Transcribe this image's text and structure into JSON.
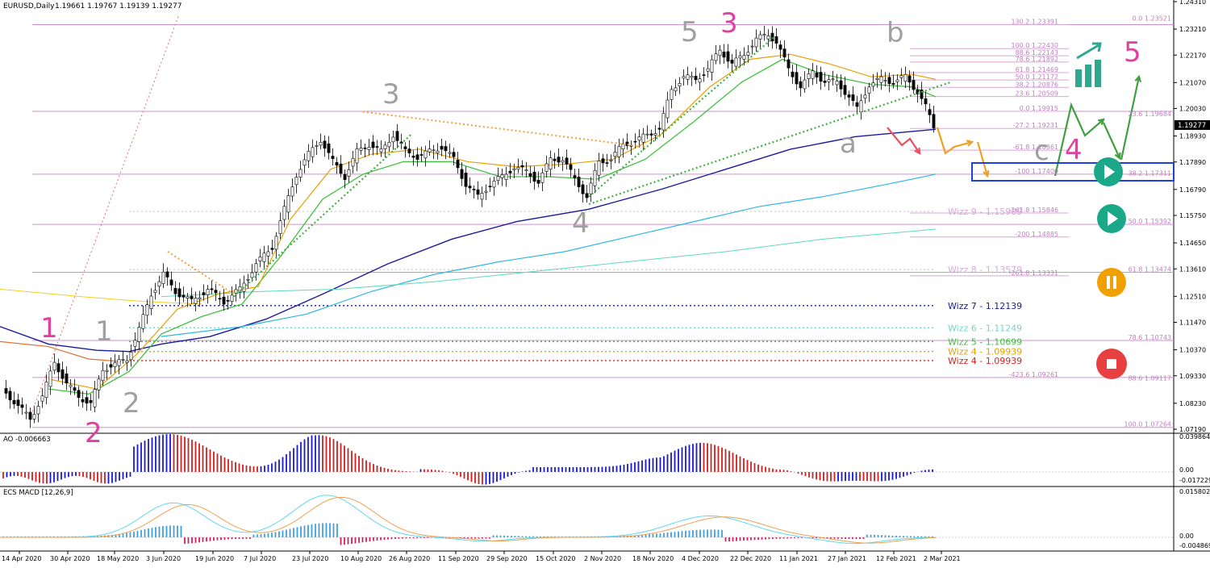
{
  "header": {
    "symbol": "EURUSD,Daily",
    "ohlc": "1.19661 1.19767 1.19139 1.19277"
  },
  "price_axis": {
    "ticks": [
      "1.24310",
      "1.23210",
      "1.22170",
      "1.21070",
      "1.20030",
      "1.18930",
      "1.17890",
      "1.16790",
      "1.15750",
      "1.14650",
      "1.13610",
      "1.12510",
      "1.11470",
      "1.10370",
      "1.09330",
      "1.08230",
      "1.07190"
    ],
    "current_price": "1.19277"
  },
  "time_axis": {
    "ticks": [
      "14 Apr 2020",
      "30 Apr 2020",
      "18 May 2020",
      "3 Jun 2020",
      "19 Jun 2020",
      "7 Jul 2020",
      "23 Jul 2020",
      "10 Aug 2020",
      "26 Aug 2020",
      "11 Sep 2020",
      "29 Sep 2020",
      "15 Oct 2020",
      "2 Nov 2020",
      "18 Nov 2020",
      "4 Dec 2020",
      "22 Dec 2020",
      "11 Jan 2021",
      "27 Jan 2021",
      "12 Feb 2021",
      "2 Mar 2021"
    ]
  },
  "fib_labels": {
    "top": [
      "130.2 1.23391",
      "100.0 1.22430",
      "88.6 1.22143",
      "78.6 1.21892",
      "61.8 1.21469",
      "50.0 1.21172",
      "38.2 1.20876",
      "23.6 1.20509",
      "0.0 1.19915",
      "-27.2 1.19231",
      "-61.8 1.18361",
      "-100 1.17400",
      "-161.8 1.15846",
      "-200 1.14885",
      "-261.8 1.13331",
      "-423.6 1.09261"
    ],
    "right": [
      "0.0 1.23521",
      "23.6 1.19684",
      "38.2 1.17311",
      "50.0 1.15392",
      "61.8 1.13474",
      "78.6 1.10743",
      "88.6 1.09117",
      "100.0 1.07264"
    ]
  },
  "wizz_levels": [
    {
      "label": "Wizz 9 - 1.15909",
      "color": "#d8a8d8"
    },
    {
      "label": "Wizz 8 - 1.13579",
      "color": "#d8a8d8"
    },
    {
      "label": "Wizz 7 - 1.12139",
      "color": "#1a1aa0"
    },
    {
      "label": "Wizz 6 - 1.11249",
      "color": "#70d8c8"
    },
    {
      "label": "Wizz 5 - 1.10699",
      "color": "#40c040"
    },
    {
      "label": "Wizz 4 - 1.09939",
      "color": "#e8a000"
    },
    {
      "label": "Wizz 4 - 1.09939",
      "color": "#e02020"
    }
  ],
  "wave_labels": [
    {
      "text": "1",
      "color": "#e040a0"
    },
    {
      "text": "2",
      "color": "#e040a0"
    },
    {
      "text": "1",
      "color": "#a0a0a0"
    },
    {
      "text": "2",
      "color": "#a0a0a0"
    },
    {
      "text": "3",
      "color": "#a0a0a0"
    },
    {
      "text": "4",
      "color": "#a0a0a0"
    },
    {
      "text": "5",
      "color": "#a0a0a0"
    },
    {
      "text": "3",
      "color": "#e040a0"
    },
    {
      "text": "a",
      "color": "#a0a0a0"
    },
    {
      "text": "b",
      "color": "#a0a0a0"
    },
    {
      "text": "c",
      "color": "#a0a0a0"
    },
    {
      "text": "4",
      "color": "#e040a0"
    },
    {
      "text": "5",
      "color": "#e040a0"
    }
  ],
  "ao_panel": {
    "title": "AO -0.006663",
    "ticks": [
      "0.039864",
      "0.00",
      "-0.017229"
    ]
  },
  "macd_panel": {
    "title": "ECS MACD [12,26,9]",
    "ticks": [
      "0.0158024",
      "0.00",
      "-0.004869"
    ]
  },
  "chart_data": {
    "type": "candlestick",
    "title": "EURUSD,Daily",
    "x_range": [
      "14 Apr 2020",
      "2 Mar 2021"
    ],
    "ylim": [
      1.0719,
      1.2431
    ],
    "series": [
      {
        "name": "EURUSD",
        "ohlc_last": [
          1.19661,
          1.19767,
          1.19139,
          1.19277
        ]
      }
    ],
    "fib_levels_top": [
      1.23391,
      1.2243,
      1.22143,
      1.21892,
      1.21469,
      1.21172,
      1.20876,
      1.20509,
      1.19915,
      1.19231,
      1.18361,
      1.174,
      1.15846,
      1.14885,
      1.13331,
      1.09261
    ],
    "fib_levels_right": [
      1.23521,
      1.19684,
      1.17311,
      1.15392,
      1.13474,
      1.10743,
      1.09117,
      1.07264
    ],
    "wizz_levels": [
      1.15909,
      1.13579,
      1.12139,
      1.11249,
      1.10699,
      1.09939
    ]
  },
  "colors": {
    "ma_dark_blue": "#1a1aa0",
    "ma_cyan": "#30b8e0",
    "ma_green": "#40c040",
    "ma_orange": "#e8a000",
    "ma_magenta": "#c020c0",
    "bull_bar": "#1a1ad0",
    "bear_bar": "#d02020",
    "play_button": "#1aa888",
    "pause_button": "#f0a000",
    "stop_button": "#e84040",
    "target_box": "#2040d0"
  }
}
